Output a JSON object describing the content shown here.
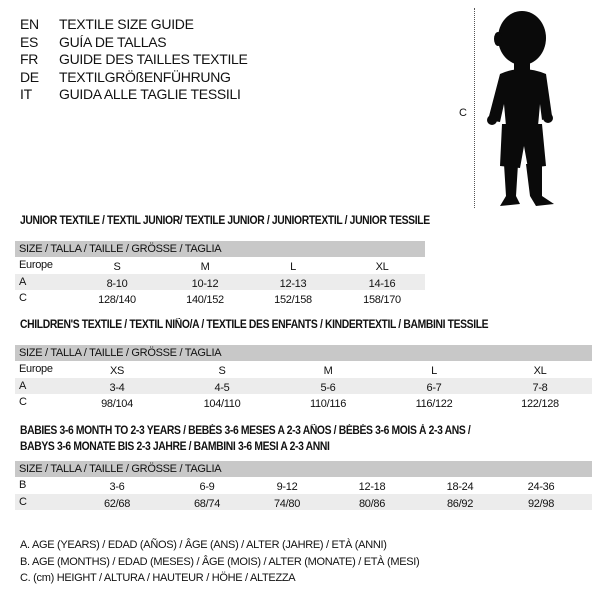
{
  "languages": [
    {
      "code": "EN",
      "title": "TEXTILE SIZE GUIDE"
    },
    {
      "code": "ES",
      "title": "GUÍA DE TALLAS"
    },
    {
      "code": "FR",
      "title": "GUIDE DES TAILLES TEXTILE"
    },
    {
      "code": "DE",
      "title": "TEXTILGRÖßENFÜHRUNG"
    },
    {
      "code": "IT",
      "title": "GUIDA ALLE TAGLIE TESSILI"
    }
  ],
  "figure": {
    "measure_label": "C",
    "icon": "child-silhouette"
  },
  "size_header": "SIZE / TALLA / TAILLE / GRÖSSE / TAGLIA",
  "tables": [
    {
      "heading": "JUNIOR TEXTILE / TEXTIL JUNIOR/ TEXTILE JUNIOR / JUNIORTEXTIL / JUNIOR TESSILE",
      "rows": [
        {
          "label": "Europe",
          "values": [
            "S",
            "M",
            "L",
            "XL"
          ]
        },
        {
          "label": "A",
          "values": [
            "8-10",
            "10-12",
            "12-13",
            "14-16"
          ]
        },
        {
          "label": "C",
          "values": [
            "128/140",
            "140/152",
            "152/158",
            "158/170"
          ]
        }
      ]
    },
    {
      "heading": "CHILDREN'S TEXTILE / TEXTIL NIÑO/A / TEXTILE DES ENFANTS / KINDERTEXTIL / BAMBINI TESSILE",
      "rows": [
        {
          "label": "Europe",
          "values": [
            "XS",
            "S",
            "M",
            "L",
            "XL"
          ]
        },
        {
          "label": "A",
          "values": [
            "3-4",
            "4-5",
            "5-6",
            "6-7",
            "7-8"
          ]
        },
        {
          "label": "C",
          "values": [
            "98/104",
            "104/110",
            "110/116",
            "116/122",
            "122/128"
          ]
        }
      ]
    },
    {
      "heading": "BABIES 3-6 MONTH TO 2-3 YEARS / BEBÉS 3-6 MESES A 2-3 AÑOS / BÉBÉS 3-6 MOIS À 2-3 ANS /",
      "heading2": "BABYS 3-6 MONATE BIS 2-3 JAHRE / BAMBINI 3-6 MESI A 2-3 ANNI",
      "rows": [
        {
          "label": "B",
          "values": [
            "3-6",
            "6-9",
            "9-12",
            "12-18",
            "18-24",
            "24-36"
          ]
        },
        {
          "label": "C",
          "values": [
            "62/68",
            "68/74",
            "74/80",
            "80/86",
            "86/92",
            "92/98"
          ]
        }
      ]
    }
  ],
  "legend": [
    "A. AGE (YEARS) / EDAD (AÑOS) / ÂGE (ANS) / ALTER (JAHRE) / ETÀ (ANNI)",
    "B. AGE (MONTHS) / EDAD (MESES) / ÂGE (MOIS) / ALTER (MONATE) / ETÀ (MESI)",
    "C. (cm) HEIGHT / ALTURA / HAUTEUR / HÖHE / ALTEZZA"
  ]
}
